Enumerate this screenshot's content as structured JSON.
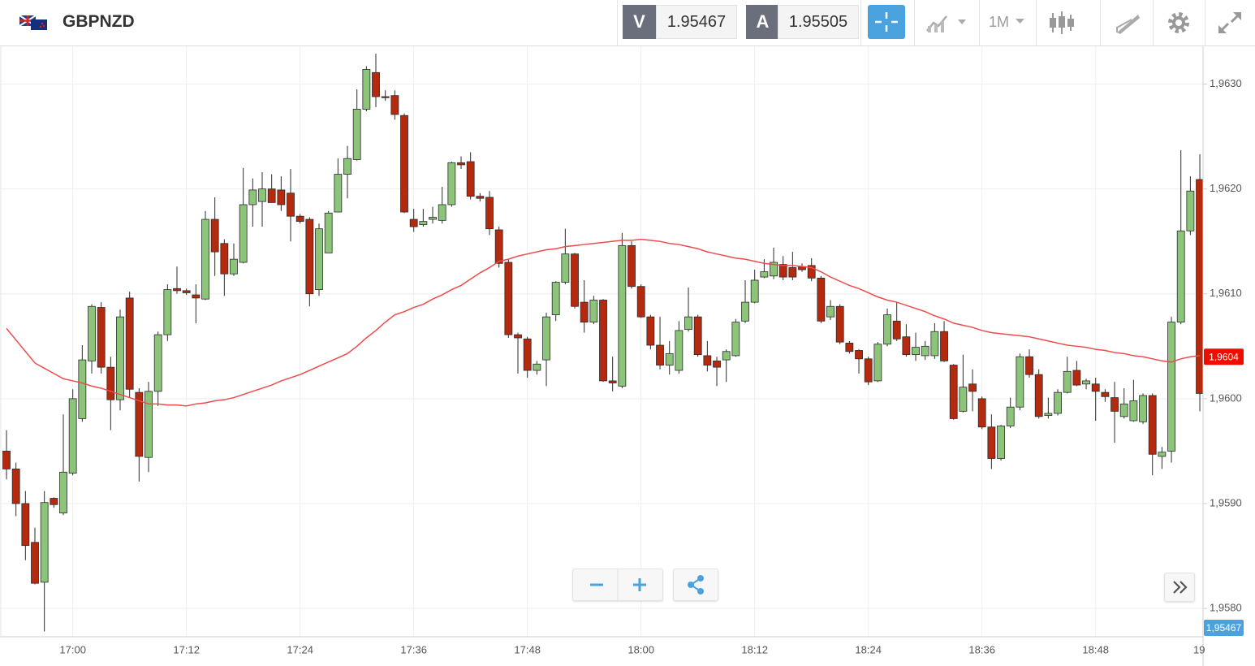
{
  "header": {
    "symbol": "GBPNZD",
    "bid_label": "V",
    "bid": "1.95467",
    "ask_label": "A",
    "ask": "1.95505",
    "interval": "1M"
  },
  "chart_data": {
    "type": "candlestick",
    "categories": [
      null,
      null,
      null,
      null,
      null,
      null,
      null,
      "17:00",
      null,
      null,
      null,
      null,
      null,
      null,
      null,
      null,
      null,
      null,
      null,
      "17:12",
      null,
      null,
      null,
      null,
      null,
      null,
      null,
      null,
      null,
      null,
      null,
      "17:24",
      null,
      null,
      null,
      null,
      null,
      null,
      null,
      null,
      null,
      null,
      null,
      "17:36",
      null,
      null,
      null,
      null,
      null,
      null,
      null,
      null,
      null,
      null,
      null,
      "17:48",
      null,
      null,
      null,
      null,
      null,
      null,
      null,
      null,
      null,
      null,
      null,
      "18:00",
      null,
      null,
      null,
      null,
      null,
      null,
      null,
      null,
      null,
      null,
      null,
      "18:12",
      null,
      null,
      null,
      null,
      null,
      null,
      null,
      null,
      null,
      null,
      null,
      "18:24",
      null,
      null,
      null,
      null,
      null,
      null,
      null,
      null,
      null,
      null,
      null,
      "18:36",
      null,
      null,
      null,
      null,
      null,
      null,
      null,
      null,
      null,
      null,
      null,
      "18:48",
      null,
      null,
      null,
      null,
      null,
      null,
      null,
      null,
      null,
      null,
      null,
      "19"
    ],
    "open": [
      1.9595,
      1.95933,
      1.959,
      1.95863,
      1.95825,
      1.95905,
      1.95891,
      1.95929,
      1.95981,
      1.96036,
      1.96087,
      1.9603,
      1.95999,
      1.96096,
      1.96006,
      1.95944,
      1.96007,
      1.96061,
      1.96105,
      1.96103,
      1.96099,
      1.96095,
      1.96171,
      1.96148,
      1.96119,
      1.9613,
      1.96185,
      1.96188,
      1.962,
      1.96199,
      1.96196,
      1.96174,
      1.96171,
      1.96104,
      1.96139,
      1.96178,
      1.96214,
      1.96228,
      1.96276,
      1.96311,
      1.96288,
      1.96289,
      1.9627,
      1.96171,
      1.96166,
      1.96171,
      1.9617,
      1.96185,
      1.96225,
      1.96226,
      1.96193,
      1.96192,
      1.96161,
      1.9613,
      1.96061,
      1.96057,
      1.96027,
      1.96037,
      1.9608,
      1.96111,
      1.96138,
      1.96092,
      1.96073,
      1.96094,
      1.96017,
      1.96012,
      1.96146,
      1.96107,
      1.96078,
      1.96051,
      1.96032,
      1.96027,
      1.96066,
      1.96078,
      1.96041,
      1.96036,
      1.96037,
      1.96041,
      1.96074,
      1.96092,
      1.96116,
      1.96117,
      1.96128,
      1.96125,
      1.96126,
      1.96127,
      1.96115,
      1.96078,
      1.96088,
      1.96053,
      1.96046,
      1.96038,
      1.96017,
      1.96052,
      1.96074,
      1.96059,
      1.96042,
      1.96041,
      1.96041,
      1.96064,
      1.96032,
      1.95988,
      1.96014,
      1.96,
      1.95973,
      1.95943,
      1.95974,
      1.95992,
      1.9604,
      1.96023,
      1.95984,
      1.95986,
      1.96006,
      1.96027,
      1.96014,
      1.96014,
      1.96006,
      1.96001,
      1.95983,
      1.95979,
      1.95978,
      1.96003,
      1.95945,
      1.9595,
      1.96073,
      1.9616,
      1.96209,
      null
    ],
    "high": [
      1.9597,
      1.95939,
      1.95912,
      1.95877,
      1.95912,
      1.95906,
      1.95985,
      1.96009,
      1.96051,
      1.9609,
      1.96092,
      1.9604,
      1.96085,
      1.96102,
      1.9601,
      1.96016,
      1.96064,
      1.96109,
      1.96126,
      1.96105,
      1.96109,
      1.96179,
      1.96192,
      1.96152,
      1.96148,
      1.9622,
      1.9621,
      1.96216,
      1.96214,
      1.96212,
      1.96219,
      1.96176,
      1.96173,
      1.96167,
      1.96179,
      1.96229,
      1.96241,
      1.96295,
      1.96317,
      1.96329,
      1.96294,
      1.96294,
      1.96272,
      1.96181,
      1.96181,
      1.96183,
      1.96202,
      1.96226,
      1.96231,
      1.96235,
      1.96196,
      1.96198,
      1.96164,
      1.96133,
      1.96063,
      1.96059,
      1.96036,
      1.96082,
      1.96112,
      1.96162,
      1.96139,
      1.96113,
      1.96098,
      1.96095,
      1.9604,
      1.96158,
      1.9615,
      1.96109,
      1.9608,
      1.96078,
      1.96055,
      1.96074,
      1.96106,
      1.9608,
      1.96055,
      1.9604,
      1.96047,
      1.96076,
      1.96113,
      1.96123,
      1.96133,
      1.96144,
      1.96136,
      1.9614,
      1.96129,
      1.96134,
      1.96117,
      1.96094,
      1.9609,
      1.96055,
      1.96047,
      1.9604,
      1.96054,
      1.96086,
      1.96092,
      1.96071,
      1.96063,
      1.96055,
      1.96072,
      1.96074,
      1.96033,
      1.96042,
      1.96028,
      1.96002,
      1.95985,
      1.95975,
      1.96001,
      1.96043,
      1.96047,
      1.96028,
      1.96001,
      1.96009,
      1.9604,
      1.96036,
      1.96019,
      1.9602,
      1.96009,
      1.96016,
      1.9601,
      1.96018,
      1.96005,
      1.96005,
      1.95954,
      1.96078,
      1.96237,
      1.96212,
      1.96233,
      null
    ],
    "low": [
      1.95923,
      1.95888,
      1.95846,
      1.95823,
      1.95778,
      1.95896,
      1.95889,
      1.95927,
      1.95978,
      1.96024,
      1.96024,
      1.9597,
      1.95989,
      1.96001,
      1.95921,
      1.9593,
      1.95993,
      1.96055,
      1.961,
      1.96099,
      1.96072,
      1.96094,
      1.96117,
      1.96098,
      1.96117,
      1.96129,
      1.96164,
      1.96164,
      1.96187,
      1.96179,
      1.9615,
      1.96167,
      1.96088,
      1.96098,
      1.96139,
      1.96178,
      1.96191,
      1.96227,
      1.96274,
      1.96278,
      1.96284,
      1.96266,
      1.96177,
      1.96159,
      1.96164,
      1.96167,
      1.96167,
      1.96183,
      1.96219,
      1.9619,
      1.96188,
      1.96156,
      1.96125,
      1.96058,
      1.96024,
      1.9602,
      1.96023,
      1.96012,
      1.96074,
      1.96109,
      1.96086,
      1.96063,
      1.96071,
      1.96016,
      1.96007,
      1.9601,
      1.96105,
      1.96077,
      1.96047,
      1.96028,
      1.96023,
      1.96024,
      1.96064,
      1.9604,
      1.96026,
      1.96012,
      1.96016,
      1.9604,
      1.96072,
      1.96091,
      1.96115,
      1.96114,
      1.96113,
      1.96113,
      1.96121,
      1.96112,
      1.96072,
      1.96075,
      1.96052,
      1.96043,
      1.96024,
      1.96013,
      1.96016,
      1.9605,
      1.96055,
      1.9604,
      1.96036,
      1.96037,
      1.96038,
      1.96035,
      1.9598,
      1.95987,
      1.95988,
      1.95971,
      1.95933,
      1.95941,
      1.95972,
      1.95989,
      1.9602,
      1.95981,
      1.95981,
      1.95984,
      1.96005,
      1.96012,
      1.96009,
      1.95979,
      1.95997,
      1.95958,
      1.95981,
      1.95978,
      1.95976,
      1.95927,
      1.95933,
      1.95939,
      1.96071,
      1.96156,
      1.95988,
      null
    ],
    "close": [
      1.95933,
      1.959,
      1.9586,
      1.95824,
      1.95901,
      1.95899,
      1.9593,
      1.96,
      1.96037,
      1.96088,
      1.9603,
      1.95999,
      1.96078,
      1.96009,
      1.95945,
      1.96007,
      1.96061,
      1.96104,
      1.96103,
      1.96101,
      1.96096,
      1.96171,
      1.9614,
      1.96119,
      1.96133,
      1.96185,
      1.96199,
      1.962,
      1.96187,
      1.96185,
      1.96174,
      1.96169,
      1.961,
      1.96162,
      1.96177,
      1.96214,
      1.96229,
      1.96276,
      1.96314,
      1.96288,
      1.96287,
      1.96271,
      1.96178,
      1.96164,
      1.96169,
      1.96173,
      1.96185,
      1.96225,
      1.96223,
      1.96193,
      1.96191,
      1.96162,
      1.96129,
      1.96061,
      1.96058,
      1.96027,
      1.96033,
      1.96078,
      1.96111,
      1.96138,
      1.96088,
      1.96073,
      1.96094,
      1.96017,
      1.96015,
      1.96146,
      1.96107,
      1.96078,
      1.96051,
      1.96032,
      1.96043,
      1.96065,
      1.96078,
      1.96042,
      1.96032,
      1.9603,
      1.96045,
      1.96073,
      1.96092,
      1.96113,
      1.96121,
      1.9613,
      1.96116,
      1.96116,
      1.96123,
      1.96115,
      1.96074,
      1.96088,
      1.96054,
      1.96045,
      1.96038,
      1.96016,
      1.96052,
      1.9608,
      1.96057,
      1.96042,
      1.96049,
      1.9605,
      1.96064,
      1.96036,
      1.95981,
      1.96011,
      1.96007,
      1.95973,
      1.95943,
      1.95974,
      1.95992,
      1.9604,
      1.96023,
      1.95983,
      1.95986,
      1.96006,
      1.96026,
      1.96013,
      1.96017,
      1.96007,
      1.96002,
      1.95988,
      1.95995,
      1.95998,
      1.96003,
      1.95947,
      1.95949,
      1.96073,
      1.9616,
      1.96198,
      1.96005,
      null
    ],
    "up_color": "#8cc47a",
    "down_color": "#b52a0e",
    "ma": {
      "color": "#ef4b4b",
      "values": [
        1.96067,
        1.96056,
        1.96045,
        1.96034,
        1.96029,
        1.96024,
        1.96019,
        1.96017,
        1.96015,
        1.96012,
        1.9601,
        1.96007,
        1.96004,
        1.96001,
        1.95998,
        1.95995,
        1.95995,
        1.95994,
        1.95994,
        1.95993,
        1.95995,
        1.95996,
        1.95998,
        1.95999,
        1.96001,
        1.96004,
        1.96007,
        1.9601,
        1.96013,
        1.96017,
        1.9602,
        1.96023,
        1.96027,
        1.96031,
        1.96035,
        1.96039,
        1.96043,
        1.9605,
        1.96058,
        1.96065,
        1.96073,
        1.9608,
        1.96083,
        1.96087,
        1.9609,
        1.96095,
        1.96099,
        1.96104,
        1.96108,
        1.96114,
        1.9612,
        1.96125,
        1.96131,
        1.96133,
        1.96136,
        1.96138,
        1.9614,
        1.96142,
        1.96143,
        1.96145,
        1.96146,
        1.96147,
        1.96148,
        1.96149,
        1.9615,
        1.96151,
        1.96151,
        1.96152,
        1.96151,
        1.9615,
        1.96148,
        1.96147,
        1.96145,
        1.96143,
        1.9614,
        1.96138,
        1.96136,
        1.96134,
        1.96133,
        1.96131,
        1.96129,
        1.96128,
        1.96127,
        1.96127,
        1.96126,
        1.96125,
        1.96121,
        1.96116,
        1.96112,
        1.96108,
        1.96105,
        1.96101,
        1.96097,
        1.96094,
        1.96092,
        1.96089,
        1.96086,
        1.96083,
        1.96079,
        1.96076,
        1.96072,
        1.9607,
        1.96068,
        1.96065,
        1.96063,
        1.96062,
        1.96061,
        1.9606,
        1.96059,
        1.96057,
        1.96055,
        1.96053,
        1.96051,
        1.9605,
        1.96049,
        1.96047,
        1.96046,
        1.96044,
        1.96043,
        1.96041,
        1.9604,
        1.96038,
        1.96036,
        1.96035,
        1.96038,
        1.9604,
        1.96041,
        null
      ]
    },
    "ylim": [
      1.95773,
      1.96336
    ],
    "yticks": [
      {
        "value": 1.958,
        "label": "1,9580"
      },
      {
        "value": 1.959,
        "label": "1,9590"
      },
      {
        "value": 1.96,
        "label": "1,9600"
      },
      {
        "value": 1.961,
        "label": "1,9610"
      },
      {
        "value": 1.962,
        "label": "1,9620"
      },
      {
        "value": 1.963,
        "label": "1,9630"
      }
    ],
    "grid": true,
    "price_tags": [
      {
        "value": 1.9604,
        "label": "1,9604",
        "color": "#f20c00"
      },
      {
        "value": 1.95467,
        "label": "1,95467",
        "color": "#4aa3df"
      }
    ]
  }
}
